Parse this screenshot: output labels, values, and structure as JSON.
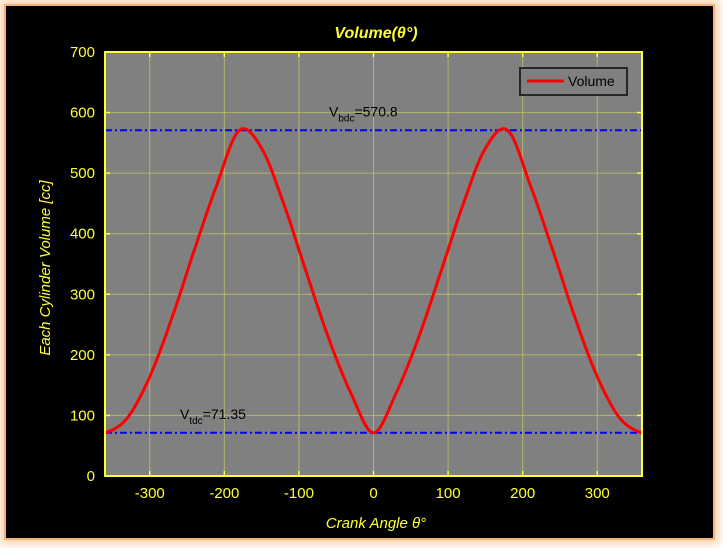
{
  "chart_data": {
    "type": "line",
    "title": "Volume(θ°)",
    "xlabel": "Crank Angle θ°",
    "ylabel": "Each Cylinder Volume [cc]",
    "xlim": [
      -360,
      360
    ],
    "ylim": [
      0,
      700
    ],
    "xticks": [
      -300,
      -200,
      -100,
      0,
      100,
      200,
      300
    ],
    "yticks": [
      0,
      100,
      200,
      300,
      400,
      500,
      600,
      700
    ],
    "grid": true,
    "legend": "top-right",
    "series": [
      {
        "name": "Volume",
        "color": "#ff0000",
        "x": [
          -360,
          -330,
          -300,
          -270,
          -240,
          -210,
          -180,
          -150,
          -120,
          -90,
          -60,
          -30,
          0,
          30,
          60,
          90,
          120,
          150,
          180,
          210,
          240,
          270,
          300,
          330,
          360
        ],
        "y": [
          71.35,
          96,
          164,
          262,
          374,
          481,
          570.8,
          541,
          448,
          336,
          227,
          136,
          71.35,
          136,
          227,
          336,
          448,
          541,
          570.8,
          481,
          374,
          262,
          164,
          96,
          71.35
        ]
      }
    ],
    "reference_lines": [
      {
        "value": 570.8,
        "label_main": "V",
        "label_sub": "bdc",
        "label_rest": "=570.8",
        "color": "#0000ff"
      },
      {
        "value": 71.35,
        "label_main": "V",
        "label_sub": "tdc",
        "label_rest": "=71.35",
        "color": "#0000ff"
      }
    ],
    "colors": {
      "axes_bg": "#808080",
      "grid": "#c8c864",
      "axis": "#ffff33",
      "figure_bg": "#000000"
    }
  }
}
